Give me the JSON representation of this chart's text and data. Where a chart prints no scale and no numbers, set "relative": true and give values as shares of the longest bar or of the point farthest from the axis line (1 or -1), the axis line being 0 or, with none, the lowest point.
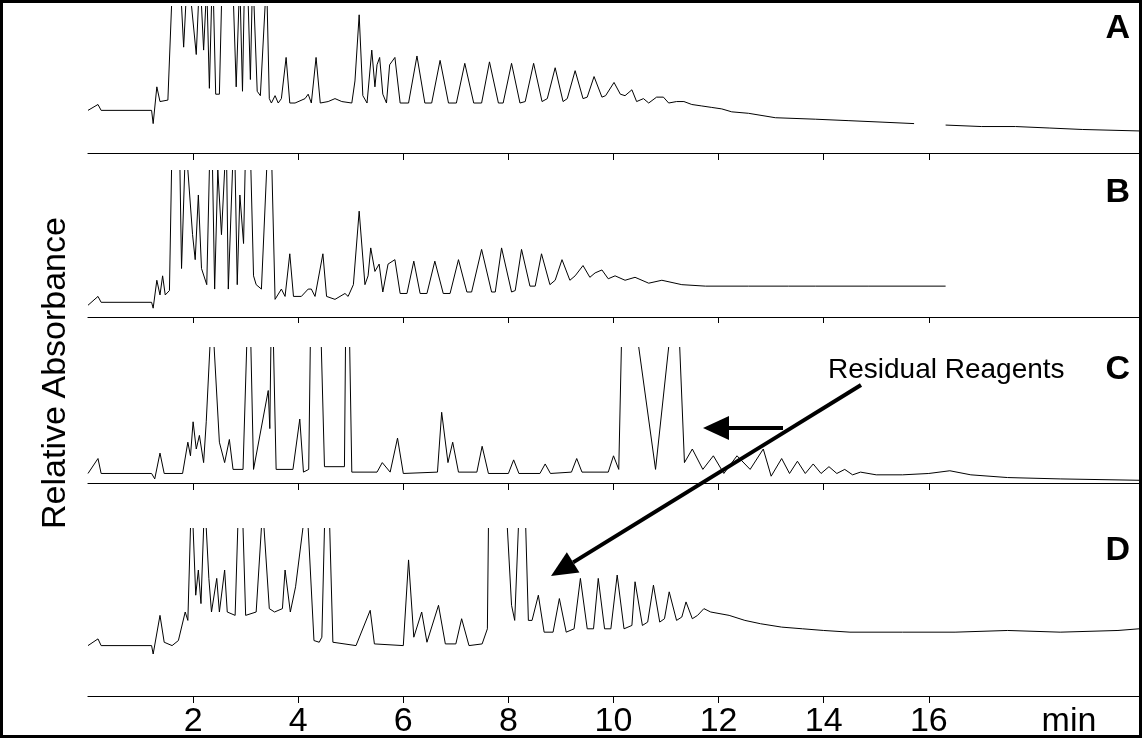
{
  "chart_data": [
    {
      "type": "line",
      "title": "A",
      "ylabel": "Relative Absorbance",
      "relative": true,
      "color": "#000000",
      "tick_labels": false,
      "xlim": [
        0,
        20
      ],
      "xticks": [
        2,
        4,
        6,
        8,
        10,
        12,
        14,
        16
      ],
      "x": [
        0,
        0.19,
        0.25,
        1.21,
        1.24,
        1.31,
        1.37,
        1.52,
        1.59,
        1.68,
        1.78,
        1.82,
        1.86,
        1.92,
        1.97,
        2.06,
        2.1,
        2.13,
        2.16,
        2.2,
        2.24,
        2.26,
        2.27,
        2.31,
        2.35,
        2.37,
        2.39,
        2.43,
        2.5,
        2.54,
        2.65,
        2.77,
        2.82,
        2.87,
        2.89,
        2.9,
        2.94,
        2.97,
        3.02,
        3.05,
        3.09,
        3.12,
        3.14,
        3.16,
        3.22,
        3.28,
        3.37,
        3.39,
        3.41,
        3.45,
        3.49,
        3.56,
        3.62,
        3.68,
        3.77,
        3.84,
        3.94,
        4.13,
        4.19,
        4.25,
        4.34,
        4.42,
        4.57,
        4.7,
        4.83,
        5.02,
        5.08,
        5.16,
        5.23,
        5.31,
        5.4,
        5.46,
        5.5,
        5.55,
        5.61,
        5.68,
        5.74,
        5.84,
        5.94,
        6.1,
        6.26,
        6.41,
        6.54,
        6.7,
        6.86,
        7.01,
        7.17,
        7.34,
        7.49,
        7.64,
        7.81,
        7.9,
        8.06,
        8.22,
        8.32,
        8.48,
        8.64,
        8.74,
        8.89,
        9.04,
        9.12,
        9.27,
        9.42,
        9.5,
        9.63,
        9.78,
        9.85,
        10.01,
        10.13,
        10.22,
        10.35,
        10.44,
        10.57,
        10.67,
        10.82,
        10.95,
        11.05,
        11.2,
        11.34,
        11.49,
        11.68,
        11.87,
        12.06,
        12.25,
        12.57,
        13.08,
        13.84,
        14.48,
        15.11,
        15.72,
        16.0,
        16.32,
        17.0,
        17.65,
        18.29,
        18.92,
        20.0
      ],
      "values": [
        0.29,
        0.33,
        0.29,
        0.29,
        0.2,
        0.45,
        0.35,
        0.36,
        1,
        null,
        1,
        0.72,
        1,
        null,
        1,
        0.67,
        1,
        null,
        1,
        0.7,
        1,
        null,
        1,
        0.44,
        1,
        null,
        1,
        0.4,
        0.4,
        1,
        null,
        1,
        0.45,
        1,
        null,
        1,
        0.42,
        1,
        null,
        1,
        0.5,
        1,
        null,
        1,
        0.42,
        0.39,
        1,
        null,
        1,
        0.37,
        0.34,
        0.39,
        0.34,
        0.37,
        0.65,
        0.34,
        0.34,
        0.37,
        0.4,
        0.34,
        0.65,
        0.34,
        0.35,
        0.37,
        0.35,
        0.34,
        0.49,
        0.94,
        0.39,
        0.34,
        0.7,
        0.45,
        0.6,
        0.65,
        0.4,
        0.34,
        0.6,
        0.65,
        0.34,
        0.34,
        0.66,
        0.34,
        0.34,
        0.63,
        0.34,
        0.34,
        0.61,
        0.34,
        0.34,
        0.62,
        0.34,
        0.34,
        0.61,
        0.34,
        0.35,
        0.61,
        0.35,
        0.37,
        0.58,
        0.35,
        0.37,
        0.56,
        0.37,
        0.38,
        0.52,
        0.38,
        0.39,
        0.48,
        0.4,
        0.39,
        0.43,
        0.35,
        0.37,
        0.34,
        0.38,
        0.38,
        0.34,
        0.35,
        0.35,
        0.33,
        0.32,
        0.31,
        0.3,
        0.28,
        0.27,
        0.24,
        0.23,
        0.22,
        0.21,
        0.2,
        null,
        0.19,
        0.18,
        0.18,
        0.17,
        0.16,
        0.15
      ]
    },
    {
      "type": "line",
      "title": "B",
      "relative": true,
      "color": "#000000",
      "tick_labels": false,
      "xlim": [
        0,
        20
      ],
      "xticks": [
        2,
        4,
        6,
        8,
        10,
        12,
        14,
        16
      ],
      "x": [
        0,
        0.19,
        0.25,
        1.21,
        1.24,
        1.31,
        1.37,
        1.42,
        1.47,
        1.55,
        1.59,
        1.68,
        1.75,
        1.78,
        1.84,
        1.87,
        1.9,
        1.99,
        2.04,
        2.1,
        2.16,
        2.26,
        2.31,
        2.34,
        2.37,
        2.41,
        2.47,
        2.54,
        2.6,
        2.62,
        2.64,
        2.67,
        2.75,
        2.78,
        2.8,
        2.84,
        2.89,
        2.96,
        2.99,
        3.05,
        3.1,
        3.15,
        3.2,
        3.3,
        3.4,
        3.45,
        3.5,
        3.56,
        3.68,
        3.75,
        3.84,
        3.91,
        4.06,
        4.19,
        4.25,
        4.32,
        4.47,
        4.54,
        4.7,
        4.89,
        4.95,
        5.05,
        5.16,
        5.27,
        5.33,
        5.38,
        5.46,
        5.54,
        5.61,
        5.71,
        5.84,
        5.94,
        6.07,
        6.2,
        6.32,
        6.45,
        6.6,
        6.76,
        6.89,
        7.05,
        7.21,
        7.3,
        7.49,
        7.68,
        7.75,
        7.87,
        8.06,
        8.13,
        8.25,
        8.41,
        8.51,
        8.63,
        8.79,
        8.89,
        9.02,
        9.17,
        9.27,
        9.42,
        9.55,
        9.65,
        9.78,
        9.9,
        10.03,
        10.22,
        10.41,
        10.67,
        10.92,
        11.3,
        11.75,
        12.57,
        13.33,
        13.84,
        14.86,
        16.32
      ],
      "values": [
        0.08,
        0.14,
        0.1,
        0.1,
        0.06,
        0.25,
        0.15,
        0.28,
        0.15,
        0.18,
        1,
        null,
        1,
        0.33,
        1,
        null,
        1,
        0.56,
        0.39,
        0.83,
        0.33,
        0.22,
        1,
        null,
        1,
        0.19,
        1,
        0.56,
        1,
        null,
        1,
        0.19,
        1,
        null,
        1,
        0.22,
        0.83,
        0.5,
        1,
        null,
        1,
        0.28,
        0.22,
        0.19,
        1,
        null,
        1,
        0.12,
        0.19,
        0.14,
        0.43,
        0.14,
        0.14,
        0.19,
        0.19,
        0.14,
        0.43,
        0.14,
        0.12,
        0.16,
        0.14,
        0.22,
        0.72,
        0.22,
        0.28,
        0.47,
        0.31,
        0.36,
        0.17,
        0.36,
        0.39,
        0.16,
        0.16,
        0.38,
        0.16,
        0.16,
        0.38,
        0.16,
        0.16,
        0.39,
        0.17,
        0.17,
        0.46,
        0.17,
        0.17,
        0.47,
        0.17,
        0.18,
        0.46,
        0.21,
        0.21,
        0.43,
        0.22,
        0.25,
        0.39,
        0.25,
        0.28,
        0.35,
        0.27,
        0.3,
        0.32,
        0.26,
        0.28,
        0.25,
        0.27,
        0.23,
        0.25,
        0.22,
        0.21,
        0.21,
        0.21,
        0.21,
        0.21,
        0.21
      ]
    },
    {
      "type": "line",
      "title": "C",
      "relative": true,
      "color": "#000000",
      "tick_labels": false,
      "annotations": [
        "Residual Reagents"
      ],
      "xlim": [
        0,
        20
      ],
      "xticks": [
        2,
        4,
        6,
        8,
        10,
        12,
        14,
        16
      ],
      "x": [
        0,
        0.19,
        0.25,
        1.21,
        1.27,
        1.37,
        1.45,
        1.8,
        1.9,
        1.95,
        2.0,
        2.06,
        2.12,
        2.2,
        2.25,
        2.32,
        2.36,
        2.4,
        2.5,
        2.6,
        2.69,
        2.76,
        2.95,
        3.02,
        3.06,
        3.1,
        3.15,
        3.43,
        3.46,
        3.48,
        3.5,
        3.53,
        3.58,
        3.9,
        4.03,
        4.1,
        4.2,
        4.23,
        4.33,
        4.44,
        4.5,
        4.88,
        4.9,
        4.94,
        4.98,
        5.02,
        5.5,
        5.6,
        5.75,
        5.89,
        6.0,
        6.65,
        6.73,
        6.85,
        6.94,
        7.05,
        7.4,
        7.5,
        7.62,
        8.0,
        8.1,
        8.2,
        8.6,
        8.7,
        8.8,
        9.2,
        9.3,
        9.4,
        9.9,
        10.0,
        10.1,
        10.15,
        10.3,
        10.48,
        10.8,
        11.05,
        11.15,
        11.26,
        11.35,
        11.5,
        11.7,
        11.9,
        12.1,
        12.35,
        12.6,
        12.85,
        13.0,
        13.2,
        13.35,
        13.5,
        13.65,
        13.8,
        13.95,
        14.1,
        14.25,
        14.4,
        14.55,
        14.7,
        15.0,
        15.5,
        16.0,
        16.4,
        16.8,
        17.5,
        18.5,
        20.0
      ],
      "values": [
        0.07,
        0.18,
        0.07,
        0.07,
        0.03,
        0.22,
        0.07,
        0.07,
        0.3,
        0.2,
        0.45,
        0.25,
        0.35,
        0.15,
        0.45,
        1,
        null,
        1,
        0.3,
        0.15,
        0.32,
        0.1,
        0.1,
        1,
        null,
        1,
        0.1,
        0.68,
        0.4,
        1,
        null,
        1,
        0.1,
        0.1,
        0.47,
        0.08,
        0.1,
        1,
        null,
        1,
        0.12,
        0.12,
        1,
        null,
        1,
        0.08,
        0.08,
        0.15,
        0.08,
        0.33,
        0.07,
        0.08,
        0.52,
        0.15,
        0.3,
        0.08,
        0.08,
        0.27,
        0.07,
        0.07,
        0.17,
        0.07,
        0.07,
        0.14,
        0.07,
        0.08,
        0.18,
        0.08,
        0.08,
        0.2,
        0.1,
        1,
        null,
        1,
        0.1,
        1,
        null,
        1,
        0.15,
        0.25,
        0.1,
        0.2,
        0.07,
        0.2,
        0.1,
        0.25,
        0.05,
        0.18,
        0.07,
        0.16,
        0.07,
        0.14,
        0.07,
        0.12,
        0.07,
        0.1,
        0.06,
        0.08,
        0.06,
        0.06,
        0.07,
        0.09,
        0.06,
        0.04,
        0.03,
        0.02
      ]
    },
    {
      "type": "line",
      "title": "D",
      "xlabel": "min",
      "relative": true,
      "color": "#000000",
      "tick_labels": "x",
      "xlim": [
        0,
        20
      ],
      "xticks": [
        2,
        4,
        6,
        8,
        10,
        12,
        14,
        16
      ],
      "x": [
        0,
        0.19,
        0.25,
        1.21,
        1.24,
        1.37,
        1.45,
        1.6,
        1.72,
        1.85,
        1.9,
        1.95,
        1.97,
        2.0,
        2.05,
        2.1,
        2.15,
        2.2,
        2.22,
        2.25,
        2.3,
        2.35,
        2.45,
        2.5,
        2.6,
        2.65,
        2.8,
        2.85,
        2.9,
        2.95,
        3.0,
        3.2,
        3.3,
        3.32,
        3.35,
        3.45,
        3.55,
        3.7,
        3.75,
        3.85,
        3.95,
        4.09,
        4.14,
        4.19,
        4.3,
        4.4,
        4.45,
        4.5,
        4.55,
        4.6,
        4.66,
        5.1,
        5.37,
        5.45,
        6.0,
        6.1,
        6.2,
        6.35,
        6.45,
        6.67,
        6.8,
        7.0,
        7.11,
        7.25,
        7.5,
        7.6,
        7.62,
        7.8,
        7.98,
        8.06,
        8.12,
        8.19,
        8.25,
        8.33,
        8.38,
        8.45,
        8.57,
        8.68,
        8.85,
        8.97,
        9.1,
        9.25,
        9.37,
        9.5,
        9.62,
        9.71,
        9.83,
        9.95,
        10.07,
        10.2,
        10.35,
        10.41,
        10.55,
        10.65,
        10.76,
        10.88,
        10.97,
        11.06,
        11.2,
        11.3,
        11.38,
        11.5,
        11.6,
        11.72,
        11.85,
        12.2,
        12.5,
        12.8,
        13.2,
        13.6,
        14.0,
        14.5,
        15.5,
        16.5,
        17.5,
        18.5,
        19.6,
        20.0
      ],
      "values": [
        0.3,
        0.34,
        0.3,
        0.3,
        0.25,
        0.48,
        0.32,
        0.3,
        0.33,
        0.5,
        0.45,
        1,
        null,
        1,
        0.6,
        0.75,
        0.55,
        1,
        null,
        1,
        0.7,
        0.5,
        0.7,
        0.5,
        0.75,
        0.5,
        0.48,
        1,
        null,
        1,
        0.48,
        0.5,
        1,
        null,
        1,
        0.52,
        0.5,
        0.52,
        0.75,
        0.5,
        0.65,
        1,
        null,
        1,
        0.33,
        0.32,
        0.35,
        1,
        null,
        1,
        0.32,
        0.3,
        0.51,
        0.31,
        0.3,
        0.81,
        0.35,
        0.5,
        0.32,
        0.54,
        0.31,
        0.31,
        0.46,
        0.3,
        0.31,
        0.4,
        1,
        null,
        1,
        0.54,
        0.45,
        1,
        null,
        1,
        0.45,
        0.45,
        0.6,
        0.38,
        0.38,
        0.58,
        0.38,
        0.4,
        0.7,
        0.4,
        0.4,
        0.7,
        0.4,
        0.4,
        0.72,
        0.4,
        0.42,
        0.68,
        0.42,
        0.44,
        0.66,
        0.44,
        0.46,
        0.62,
        0.45,
        0.47,
        0.56,
        0.46,
        0.48,
        0.52,
        0.5,
        0.48,
        0.45,
        0.43,
        0.41,
        0.4,
        0.39,
        0.38,
        0.38,
        0.38,
        0.39,
        0.38,
        0.39,
        0.4
      ]
    }
  ]
}
